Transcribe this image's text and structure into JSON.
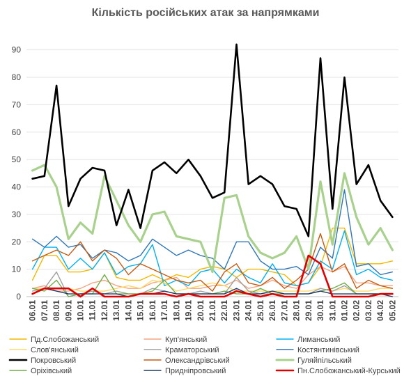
{
  "chart_data": {
    "type": "line",
    "title": "Кількість російських атак за напрямками",
    "xlabel": "",
    "ylabel": "",
    "ylim": [
      0,
      95
    ],
    "yticks": [
      0,
      10,
      20,
      30,
      40,
      50,
      60,
      70,
      80,
      90
    ],
    "grid": "horizontal",
    "legend_position": "bottom",
    "categories": [
      "06.01",
      "07.01",
      "08.01",
      "09.01",
      "10.01",
      "11.01",
      "12.01",
      "13.01",
      "14.01",
      "15.01",
      "16.01",
      "17.01",
      "18.01",
      "19.01",
      "20.01",
      "21.01",
      "22.01",
      "23.01",
      "24.01",
      "25.01",
      "26.01",
      "27.01",
      "28.01",
      "29.01",
      "30.01",
      "31.01",
      "01.02",
      "02.02",
      "03.02",
      "04.02",
      "05.02"
    ],
    "series": [
      {
        "name": "Пд.Слобожанський",
        "color": "#F2B800",
        "width": 1.4,
        "values": [
          6,
          15,
          15,
          9,
          9,
          10,
          16,
          7,
          6,
          6,
          8,
          6,
          8,
          7,
          10,
          11,
          10,
          7,
          10,
          10,
          9,
          8,
          4,
          5,
          11,
          25,
          25,
          12,
          12,
          12,
          13
        ]
      },
      {
        "name": "Куп'янський",
        "color": "#F4A582",
        "width": 1.4,
        "values": [
          3,
          4,
          2,
          2,
          3,
          5,
          6,
          4,
          3,
          3,
          5,
          6,
          7,
          3,
          3,
          4,
          4,
          6,
          3,
          4,
          6,
          4,
          3,
          8,
          11,
          9,
          11,
          5,
          5,
          4,
          4
        ]
      },
      {
        "name": "Лиманський",
        "color": "#00B0F0",
        "width": 1.4,
        "values": [
          10,
          18,
          18,
          10,
          14,
          10,
          16,
          8,
          11,
          12,
          19,
          4,
          6,
          4,
          9,
          10,
          5,
          10,
          7,
          5,
          12,
          5,
          4,
          5,
          13,
          10,
          24,
          8,
          10,
          7,
          6
        ]
      },
      {
        "name": "Слов'янський",
        "color": "#FFD966",
        "width": 1.4,
        "values": [
          3,
          3,
          3,
          3,
          2,
          2,
          2,
          3,
          4,
          3,
          6,
          5,
          2,
          3,
          4,
          5,
          4,
          2,
          2,
          2,
          2,
          2,
          2,
          2,
          3,
          2,
          3,
          2,
          2,
          3,
          3
        ]
      },
      {
        "name": "Краматорський",
        "color": "#A0A0A0",
        "width": 1.4,
        "values": [
          2,
          3,
          9,
          0,
          1,
          2,
          1,
          2,
          1,
          1,
          3,
          2,
          1,
          1,
          2,
          1,
          1,
          7,
          2,
          1,
          1,
          1,
          1,
          1,
          3,
          2,
          4,
          1,
          1,
          1,
          1
        ]
      },
      {
        "name": "Костянтинівський",
        "color": "#2E75B6",
        "width": 1.4,
        "values": [
          21,
          18,
          22,
          18,
          19,
          14,
          17,
          16,
          13,
          15,
          21,
          18,
          15,
          17,
          15,
          14,
          10,
          20,
          20,
          13,
          10,
          10,
          11,
          8,
          18,
          14,
          39,
          11,
          12,
          8,
          9
        ]
      },
      {
        "name": "Покровський",
        "color": "#000000",
        "width": 2.6,
        "values": [
          43,
          44,
          77,
          33,
          43,
          47,
          46,
          26,
          39,
          25,
          46,
          49,
          45,
          50,
          44,
          36,
          38,
          92,
          41,
          44,
          41,
          33,
          32,
          22,
          87,
          32,
          80,
          41,
          48,
          35,
          29
        ]
      },
      {
        "name": "Олександрівський",
        "color": "#C55A11",
        "width": 1.4,
        "values": [
          13,
          15,
          17,
          15,
          20,
          13,
          17,
          14,
          8,
          12,
          10,
          8,
          6,
          5,
          6,
          2,
          9,
          12,
          5,
          4,
          7,
          3,
          6,
          10,
          23,
          9,
          12,
          3,
          6,
          4,
          3
        ]
      },
      {
        "name": "Гуляйпільський",
        "color": "#A9D18E",
        "width": 3.2,
        "values": [
          46,
          48,
          40,
          21,
          27,
          23,
          44,
          35,
          26,
          20,
          30,
          31,
          22,
          21,
          20,
          9,
          36,
          37,
          22,
          16,
          14,
          16,
          22,
          10,
          42,
          19,
          45,
          29,
          19,
          25,
          17
        ]
      },
      {
        "name": "Оріхівський",
        "color": "#70AD47",
        "width": 1.4,
        "values": [
          3,
          2,
          6,
          0,
          1,
          1,
          8,
          1,
          1,
          1,
          2,
          6,
          1,
          1,
          1,
          1,
          2,
          1,
          1,
          3,
          1,
          1,
          1,
          1,
          2,
          3,
          5,
          1,
          1,
          1,
          1
        ]
      },
      {
        "name": "Придніпровський",
        "color": "#1F3864",
        "width": 1.4,
        "values": [
          1,
          3,
          2,
          1,
          1,
          1,
          1,
          1,
          0,
          1,
          1,
          2,
          1,
          1,
          1,
          1,
          1,
          3,
          1,
          1,
          2,
          1,
          1,
          1,
          2,
          1,
          1,
          1,
          1,
          1,
          0
        ]
      },
      {
        "name": "Пн.Слобожанський-Курський",
        "color": "#E00000",
        "width": 2.6,
        "values": [
          1,
          3,
          3,
          3,
          0,
          3,
          0,
          0,
          0,
          1,
          1,
          1,
          0,
          1,
          0,
          0,
          0,
          2,
          1,
          0,
          1,
          0,
          0,
          15,
          12,
          0,
          0,
          0,
          0,
          1,
          1
        ]
      }
    ]
  }
}
